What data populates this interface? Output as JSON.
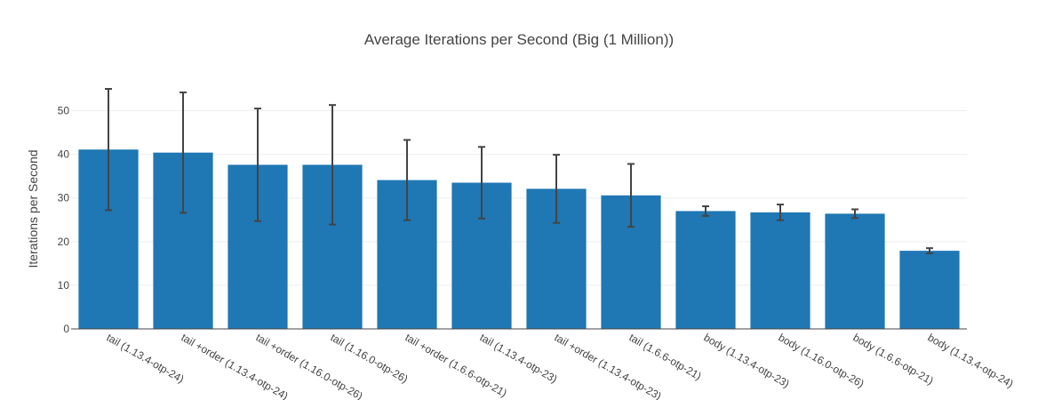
{
  "chart_data": {
    "type": "bar",
    "title": "Average Iterations per Second (Big (1 Million))",
    "xlabel": "",
    "ylabel": "Iterations per Second",
    "ylim": [
      0,
      55
    ],
    "yticks": [
      0,
      10,
      20,
      30,
      40,
      50
    ],
    "grid": true,
    "color": "#1f77b4",
    "categories": [
      "tail (1.13.4-otp-24)",
      "tail +order (1.13.4-otp-24)",
      "tail +order (1.16.0-otp-26)",
      "tail (1.16.0-otp-26)",
      "tail +order (1.6.6-otp-21)",
      "tail (1.13.4-otp-23)",
      "tail +order (1.13.4-otp-23)",
      "tail (1.6.6-otp-21)",
      "body (1.13.4-otp-23)",
      "body (1.16.0-otp-26)",
      "body (1.6.6-otp-21)",
      "body (1.13.4-otp-24)"
    ],
    "values": [
      41.1,
      40.4,
      37.6,
      37.6,
      34.1,
      33.5,
      32.1,
      30.6,
      27.0,
      26.7,
      26.4,
      17.9
    ],
    "error": [
      13.9,
      13.8,
      12.9,
      13.7,
      9.2,
      8.2,
      7.8,
      7.2,
      1.1,
      1.8,
      1.0,
      0.6
    ]
  }
}
